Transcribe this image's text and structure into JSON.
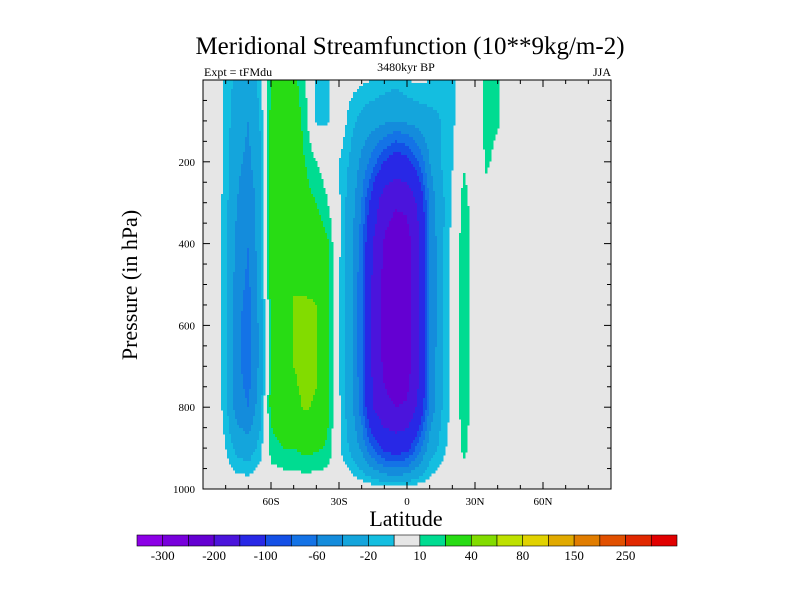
{
  "chart_data": {
    "type": "heatmap",
    "title": "Meridional Streamfunction (10**9kg/m-2)",
    "left_label": "Expt = tFMdu",
    "center_label": "3480kyr BP",
    "right_label": "JJA",
    "xlabel": "Latitude",
    "ylabel": "Pressure (in hPa)",
    "xlim": [
      -90,
      90
    ],
    "ylim": [
      0,
      1000
    ],
    "x_ticks": [
      {
        "value": -60,
        "label": "60S"
      },
      {
        "value": -30,
        "label": "30S"
      },
      {
        "value": 0,
        "label": "0"
      },
      {
        "value": 30,
        "label": "30N"
      },
      {
        "value": 60,
        "label": "60N"
      }
    ],
    "y_ticks": [
      {
        "value": 200,
        "label": "200"
      },
      {
        "value": 400,
        "label": "400"
      },
      {
        "value": 600,
        "label": "600"
      },
      {
        "value": 800,
        "label": "800"
      },
      {
        "value": 1000,
        "label": "1000"
      }
    ],
    "levels": [
      -300,
      -250,
      -200,
      -150,
      -100,
      -80,
      -60,
      -40,
      -20,
      -10,
      10,
      20,
      40,
      60,
      80,
      100,
      150,
      200,
      250,
      300
    ],
    "level_labels": [
      "-300",
      "-200",
      "-100",
      "-60",
      "-20",
      "10",
      "40",
      "80",
      "150",
      "250"
    ],
    "colors": [
      "#8c00e6",
      "#7800dc",
      "#6400d2",
      "#4b14dc",
      "#2828e6",
      "#1450e6",
      "#1473e6",
      "#148cdc",
      "#14a5dc",
      "#14bee0",
      "#e6e6e6",
      "#00dc91",
      "#28dc14",
      "#82dc00",
      "#bee100",
      "#e1d200",
      "#e1aa00",
      "#e17d00",
      "#e15000",
      "#e12800",
      "#e10000"
    ],
    "pressure": [
      0,
      100,
      200,
      300,
      400,
      500,
      600,
      700,
      800,
      900,
      1000
    ],
    "latitude": [
      -90,
      -85,
      -80,
      -75,
      -70,
      -65,
      -60,
      -55,
      -50,
      -45,
      -40,
      -35,
      -30,
      -25,
      -20,
      -15,
      -10,
      -5,
      0,
      5,
      10,
      15,
      20,
      25,
      30,
      35,
      40,
      45,
      90
    ],
    "values_by_latitude": [
      [
        0,
        0,
        0,
        0,
        0,
        0,
        0,
        0,
        0,
        0,
        0
      ],
      [
        0,
        0,
        0,
        0,
        0,
        0,
        0,
        0,
        0,
        0,
        0
      ],
      [
        -12,
        -13,
        -14,
        -15,
        -16,
        -16,
        -16,
        -16,
        -15,
        -10,
        0
      ],
      [
        -25,
        -30,
        -35,
        -40,
        -45,
        -50,
        -55,
        -55,
        -50,
        -25,
        0
      ],
      [
        -35,
        -40,
        -45,
        -55,
        -60,
        -65,
        -70,
        -70,
        -60,
        -30,
        0
      ],
      [
        -15,
        -20,
        -25,
        -30,
        -30,
        -30,
        -35,
        -35,
        -30,
        -15,
        0
      ],
      [
        20,
        25,
        25,
        25,
        25,
        25,
        25,
        25,
        25,
        15,
        0
      ],
      [
        30,
        30,
        30,
        30,
        30,
        35,
        35,
        35,
        30,
        20,
        0
      ],
      [
        25,
        30,
        30,
        30,
        35,
        40,
        40,
        40,
        35,
        20,
        0
      ],
      [
        10,
        15,
        20,
        25,
        35,
        38,
        45,
        45,
        42,
        25,
        0
      ],
      [
        -15,
        -12,
        10,
        20,
        30,
        38,
        42,
        42,
        38,
        22,
        0
      ],
      [
        -12,
        -11,
        2,
        10,
        22,
        25,
        25,
        25,
        24,
        18,
        0
      ],
      [
        0,
        0,
        -10,
        -8,
        -8,
        -8,
        -8,
        -8,
        -8,
        -8,
        0
      ],
      [
        -5,
        -15,
        -22,
        -28,
        -30,
        -32,
        -32,
        -32,
        -30,
        -22,
        0
      ],
      [
        -8,
        -25,
        -45,
        -60,
        -70,
        -75,
        -75,
        -75,
        -70,
        -45,
        0
      ],
      [
        -10,
        -30,
        -70,
        -120,
        -150,
        -160,
        -160,
        -160,
        -150,
        -80,
        0
      ],
      [
        -12,
        -35,
        -100,
        -180,
        -205,
        -215,
        -215,
        -210,
        -190,
        -110,
        0
      ],
      [
        -15,
        -40,
        -120,
        -195,
        -225,
        -230,
        -230,
        -225,
        -200,
        -120,
        0
      ],
      [
        -10,
        -35,
        -110,
        -190,
        -220,
        -225,
        -225,
        -220,
        -195,
        -110,
        0
      ],
      [
        -8,
        -30,
        -80,
        -140,
        -160,
        -165,
        -165,
        -160,
        -140,
        -70,
        0
      ],
      [
        -10,
        -25,
        -40,
        -55,
        -60,
        -60,
        -60,
        -58,
        -55,
        -30,
        0
      ],
      [
        -15,
        -20,
        -20,
        -25,
        -25,
        -25,
        -25,
        -25,
        -22,
        -15,
        0
      ],
      [
        -12,
        -12,
        -10,
        -8,
        -5,
        -5,
        -5,
        -5,
        -5,
        -3,
        0
      ],
      [
        0,
        0,
        8,
        16,
        18,
        18,
        18,
        18,
        18,
        14,
        0
      ],
      [
        0,
        0,
        0,
        0,
        0,
        0,
        0,
        0,
        0,
        0,
        0
      ],
      [
        15,
        14,
        12,
        5,
        0,
        0,
        0,
        0,
        0,
        0,
        0
      ],
      [
        12,
        11,
        6,
        0,
        0,
        0,
        0,
        0,
        0,
        0,
        0
      ],
      [
        0,
        0,
        0,
        0,
        0,
        0,
        0,
        0,
        0,
        0,
        0
      ],
      [
        0,
        0,
        0,
        0,
        0,
        0,
        0,
        0,
        0,
        0,
        0
      ]
    ]
  }
}
